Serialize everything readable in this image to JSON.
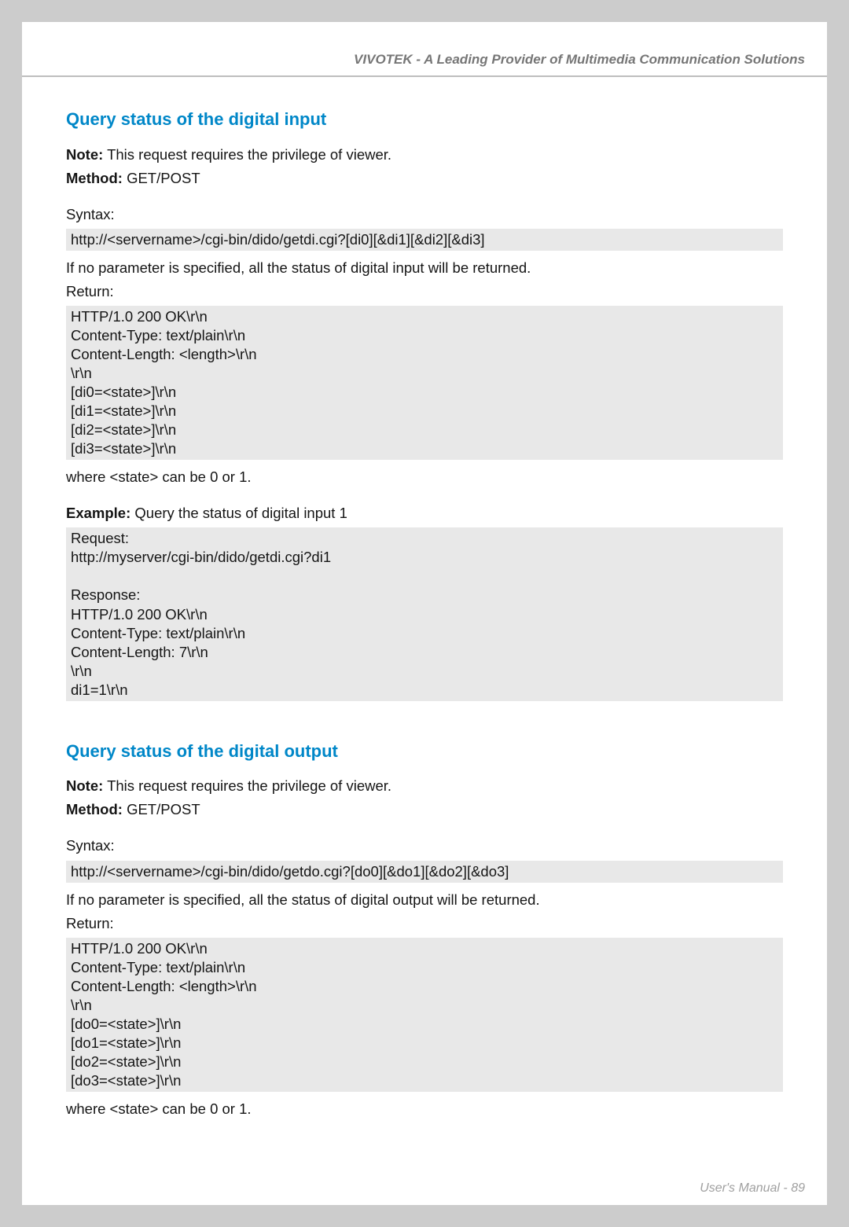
{
  "header": {
    "title": "VIVOTEK - A Leading Provider of Multimedia Communication Solutions"
  },
  "section1": {
    "heading": "Query status of the digital input",
    "note_label": "Note:",
    "note_text": " This request requires the privilege of viewer.",
    "method_label": "Method:",
    "method_text": " GET/POST",
    "syntax_label": "Syntax:",
    "syntax_code": "http://<servername>/cgi-bin/dido/getdi.cgi?[di0][&di1][&di2][&di3]",
    "noparam": "If no parameter is specified, all the status of digital input will be returned.",
    "return_label": "Return:",
    "return_code": "HTTP/1.0 200 OK\\r\\n\nContent-Type: text/plain\\r\\n\nContent-Length: <length>\\r\\n\n\\r\\n\n[di0=<state>]\\r\\n\n[di1=<state>]\\r\\n\n[di2=<state>]\\r\\n\n[di3=<state>]\\r\\n",
    "where": "where <state> can be 0 or 1.",
    "example_label": "Example:",
    "example_text": " Query the status of digital input 1",
    "example_code": "Request:\nhttp://myserver/cgi-bin/dido/getdi.cgi?di1\n\nResponse:\nHTTP/1.0 200 OK\\r\\n\nContent-Type: text/plain\\r\\n\nContent-Length: 7\\r\\n\n\\r\\n\ndi1=1\\r\\n"
  },
  "section2": {
    "heading": "Query status of the digital output",
    "note_label": "Note:",
    "note_text": " This request requires the privilege of viewer.",
    "method_label": "Method:",
    "method_text": " GET/POST",
    "syntax_label": "Syntax:",
    "syntax_code": "http://<servername>/cgi-bin/dido/getdo.cgi?[do0][&do1][&do2][&do3]",
    "noparam": "If no parameter is specified, all the status of digital output will be returned.",
    "return_label": "Return:",
    "return_code": "HTTP/1.0 200 OK\\r\\n\nContent-Type: text/plain\\r\\n\nContent-Length: <length>\\r\\n\n\\r\\n\n[do0=<state>]\\r\\n\n[do1=<state>]\\r\\n\n[do2=<state>]\\r\\n\n[do3=<state>]\\r\\n",
    "where": "where <state> can be 0 or 1."
  },
  "footer": {
    "text": "User's Manual - 89"
  },
  "colors": {
    "page_bg": "#ffffff",
    "outer_bg": "#cccccc",
    "heading": "#0087c8",
    "header_text": "#767676",
    "rule": "#bebebe",
    "body_text": "#151515",
    "code_bg": "#e8e8e8",
    "footer_text": "#a0a0a0"
  }
}
